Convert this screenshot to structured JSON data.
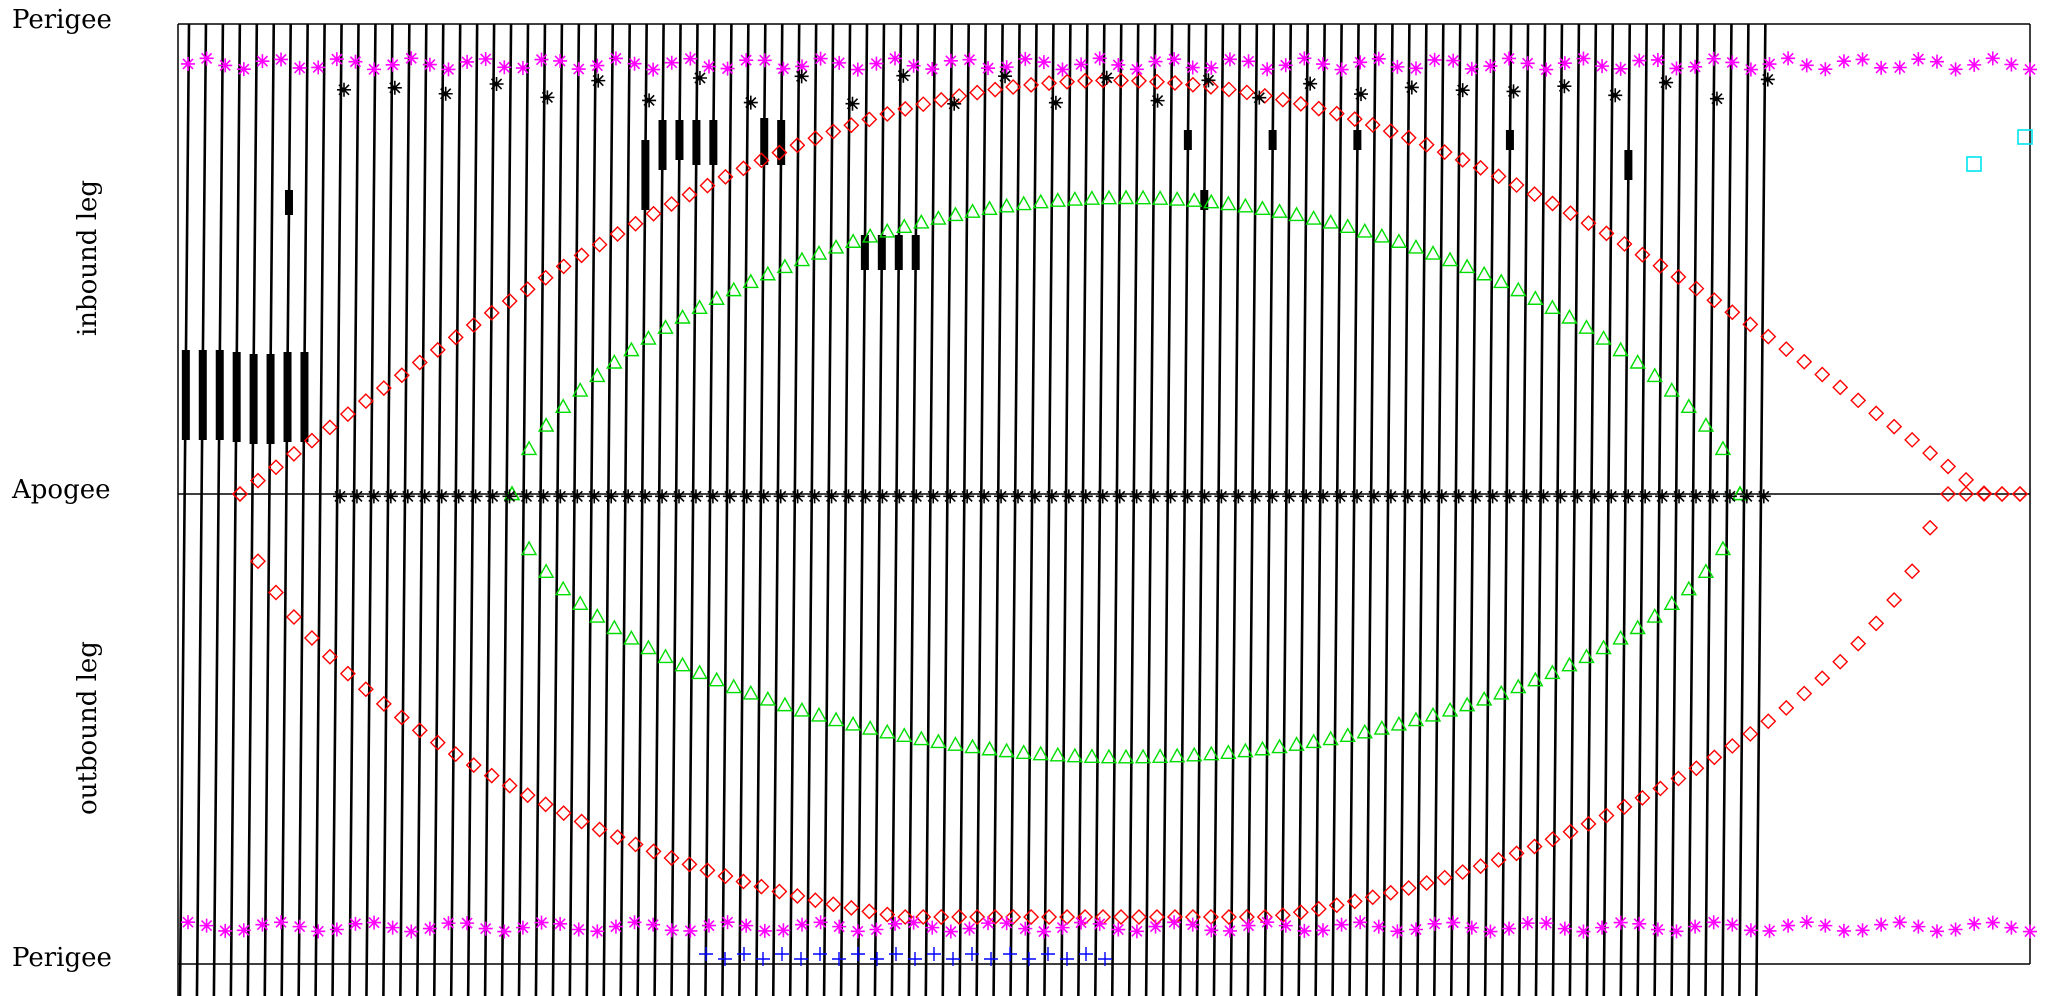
{
  "chart_data": {
    "type": "line",
    "title": "",
    "xlabel": "",
    "ylabel": "",
    "ylim": [
      0,
      2
    ],
    "y_tick_labels": [
      {
        "value": 2,
        "label": "Perigee"
      },
      {
        "value": 1,
        "label": "Apogee"
      },
      {
        "value": 0,
        "label": "Perigee"
      }
    ],
    "y_section_labels": [
      {
        "value": 1.5,
        "label": "inbound leg"
      },
      {
        "value": 0.5,
        "label": "outbound leg"
      }
    ],
    "orbit_tracks": {
      "count": 94,
      "color": "#000000"
    },
    "grid": false,
    "legend": "none",
    "series": [
      {
        "marker": "diamond",
        "color": "#ff0000",
        "curve": "outer",
        "n_points": 100
      },
      {
        "marker": "triangle",
        "color": "#00dd00",
        "curve": "inner",
        "n_points": 73
      },
      {
        "marker": "asterisk",
        "color": "#ff00ff",
        "curve": "near-perigee",
        "n_points": 100
      },
      {
        "marker": "asterisk",
        "color": "#000000",
        "curve": "apogee-and-perigee",
        "n_points": 90
      },
      {
        "marker": "square",
        "color": "#00e5ee",
        "points": 2
      },
      {
        "marker": "cross",
        "color": "#0000ff",
        "points": 22
      }
    ]
  }
}
